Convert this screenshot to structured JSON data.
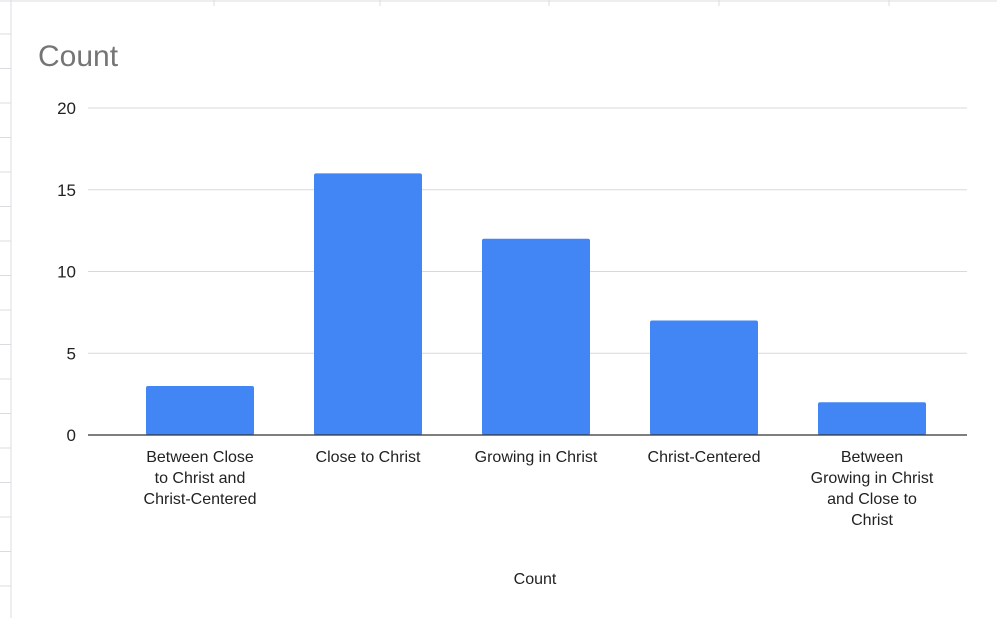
{
  "chart_data": {
    "type": "bar",
    "title": "Count",
    "xlabel": "Count",
    "ylabel": "",
    "categories": [
      "Between Close to Christ and Christ-Centered",
      "Close to Christ",
      "Growing in Christ",
      "Christ-Centered",
      "Between Growing in Christ and Close to Christ"
    ],
    "category_label_lines": [
      [
        "Between Close",
        "to Christ and",
        "Christ-Centered"
      ],
      [
        "Close to Christ"
      ],
      [
        "Growing in Christ"
      ],
      [
        "Christ-Centered"
      ],
      [
        "Between",
        "Growing in Christ",
        "and Close to",
        "Christ"
      ]
    ],
    "values": [
      3,
      16,
      12,
      7,
      2
    ],
    "ylim": [
      0,
      20
    ],
    "yticks": [
      0,
      5,
      10,
      15,
      20
    ],
    "grid": true,
    "legend": "none",
    "colors": {
      "bar": "#4285F4",
      "grid": "#d9d9d9",
      "baseline": "#333333",
      "title": "#757575",
      "text": "#222222",
      "sheet_lines": "#dadce0"
    }
  }
}
